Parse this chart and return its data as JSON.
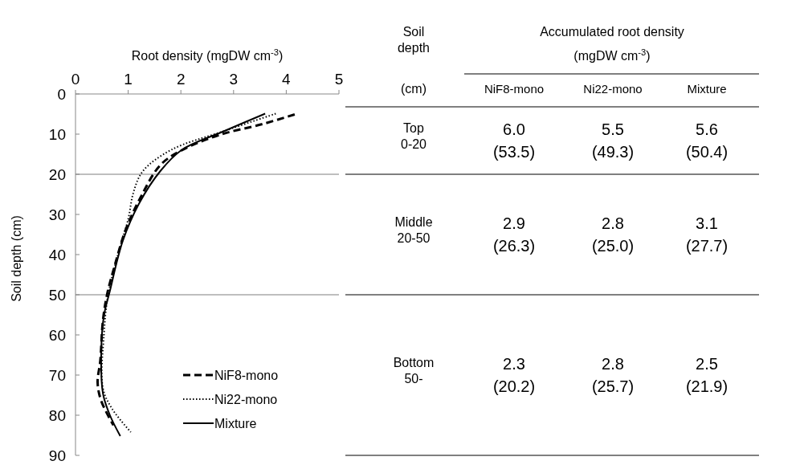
{
  "chart_data": [
    {
      "type": "line",
      "xlabel": "Root density (mgDW cm$^{-3}$)",
      "ylabel": "Soil depth (cm)",
      "xlim": [
        0,
        5
      ],
      "xticks": [
        0,
        1,
        2,
        3,
        4,
        5
      ],
      "ylim": [
        90,
        0
      ],
      "yticks": [
        0,
        10,
        20,
        30,
        40,
        50,
        60,
        70,
        80,
        90
      ],
      "grid": false,
      "legend": "bottom right",
      "ref_lines": [
        {
          "axis": "y",
          "value": 20,
          "color": "#7f7f7f"
        },
        {
          "axis": "y",
          "value": 50,
          "color": "#7f7f7f"
        }
      ],
      "series": [
        {
          "name": "NiF8-mono",
          "color": "#000000",
          "line_style": "dashed",
          "x": [
            4.16,
            3.55,
            2.73,
            2.02,
            1.61,
            1.23,
            0.95,
            0.75,
            0.6,
            0.52,
            0.47,
            0.42,
            0.49,
            0.72
          ],
          "values": [
            5.1,
            7.5,
            10.2,
            14,
            17.7,
            25.9,
            33.9,
            42.5,
            49.9,
            56.5,
            66.5,
            71.9,
            76.5,
            82.5
          ]
        },
        {
          "name": "Ni22-mono",
          "color": "#000000",
          "line_style": "dotted",
          "x": [
            3.8,
            2.83,
            1.82,
            1.28,
            1.1,
            1.0,
            0.85,
            0.62,
            0.54,
            0.52,
            0.7,
            1.05
          ],
          "values": [
            4.9,
            9.2,
            13.9,
            19.2,
            24.5,
            31.2,
            37.9,
            49.9,
            59.9,
            73.2,
            78.5,
            84.2
          ]
        },
        {
          "name": "Mixture",
          "color": "#000000",
          "line_style": "solid",
          "x": [
            3.6,
            2.83,
            2.02,
            1.61,
            1.21,
            0.9,
            0.65,
            0.54,
            0.49,
            0.52,
            0.65,
            0.85
          ],
          "values": [
            4.9,
            9.2,
            13.9,
            19.2,
            27.2,
            36.5,
            49.2,
            55.2,
            63.2,
            74.5,
            79.9,
            85.2
          ]
        }
      ]
    },
    {
      "type": "other",
      "title": "Accumulated root density\n(mgDW cm$^{-3}$)",
      "ylabel": "Soil\ndepth\n(cm)",
      "categories": [
        "NiF8-mono",
        "Ni22-mono",
        "Mixture"
      ],
      "y_categories": [
        "Top\n0-20",
        "Middle\n20-50",
        "Bottom\n50-"
      ],
      "cell_labels": [
        [
          "6.0\n(53.5)",
          "5.5\n(49.3)",
          "5.6\n(50.4)"
        ],
        [
          "2.9\n(26.3)",
          "2.8\n(25.0)",
          "3.1\n(27.7)"
        ],
        [
          "2.3\n(20.2)",
          "2.8\n(25.7)",
          "2.5\n(21.9)"
        ]
      ]
    }
  ]
}
